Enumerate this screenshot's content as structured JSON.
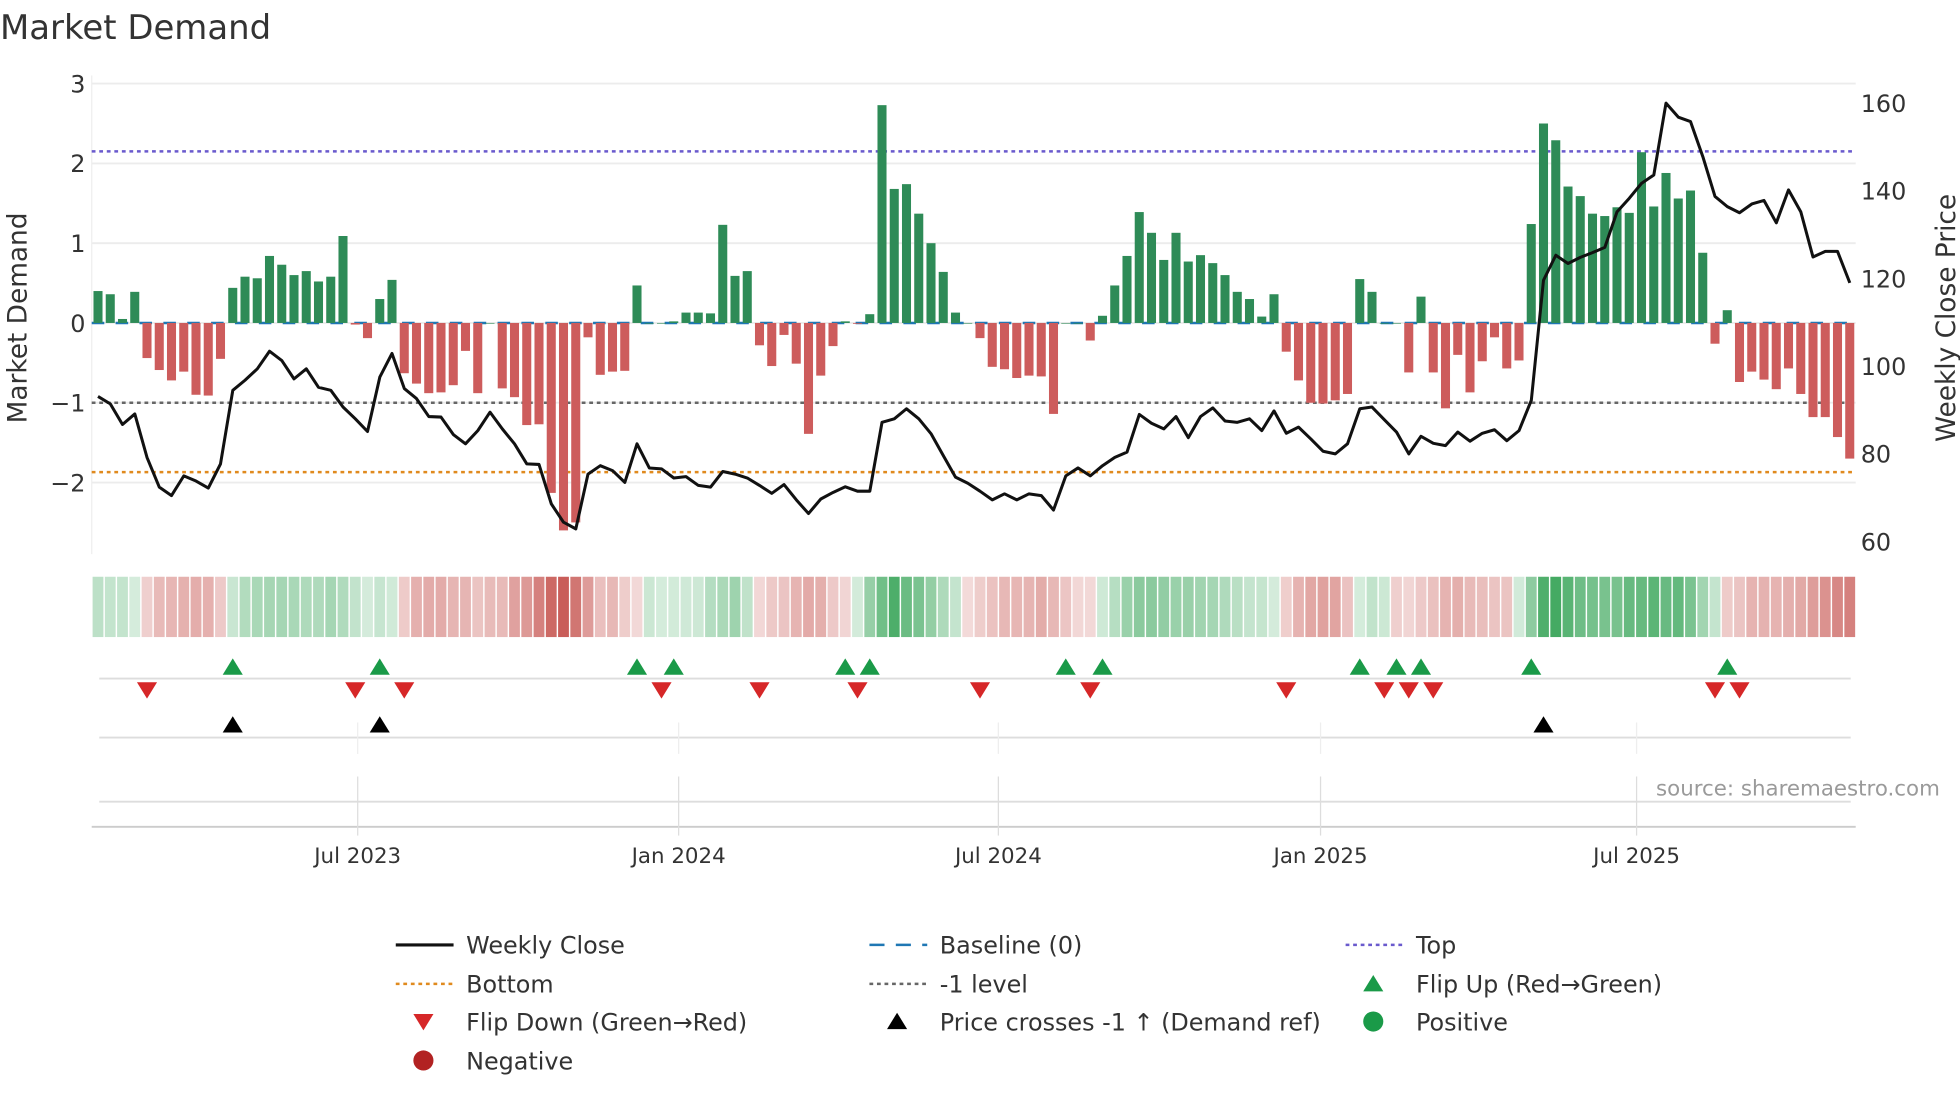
{
  "chart_data": {
    "type": "bar+line",
    "title": "Market Demand",
    "ylabel": "Market Demand",
    "y2label": "Weekly Close Price",
    "ylim": [
      -2.9,
      3
    ],
    "y2lim": [
      60,
      163
    ],
    "yticks": [
      3,
      2,
      1,
      0,
      -1,
      -2
    ],
    "ytick_labels": [
      "3",
      "2",
      "1",
      "0",
      "−1",
      "−2"
    ],
    "y2ticks": [
      160,
      140,
      120,
      100,
      80,
      60
    ],
    "y2tick_labels": [
      "160",
      "140",
      "120",
      "100",
      "80",
      "60"
    ],
    "xtick_labels": [
      "Jul 2023",
      "Jan 2024",
      "Jul 2024",
      "Jan 2025",
      "Jul 2025"
    ],
    "xtick_week_index": [
      21.2,
      47.4,
      73.5,
      99.8,
      125.6
    ],
    "frequency": "weekly",
    "demand": [
      0.4,
      0.36,
      0.05,
      0.39,
      -0.44,
      -0.59,
      -0.72,
      -0.61,
      -0.9,
      -0.91,
      -0.45,
      0.44,
      0.58,
      0.56,
      0.84,
      0.73,
      0.6,
      0.65,
      0.52,
      0.58,
      1.09,
      -0.02,
      -0.19,
      0.3,
      0.54,
      -0.63,
      -0.76,
      -0.88,
      -0.87,
      -0.78,
      -0.35,
      -0.88,
      0.0,
      -0.82,
      -0.93,
      -1.28,
      -1.27,
      -2.13,
      -2.6,
      -2.5,
      -0.18,
      -0.65,
      -0.61,
      -0.6,
      0.47,
      0.0,
      0.0,
      0.02,
      0.13,
      0.13,
      0.12,
      1.23,
      0.59,
      0.65,
      -0.28,
      -0.54,
      -0.15,
      -0.51,
      -1.39,
      -0.66,
      -0.29,
      0.02,
      -0.01,
      0.11,
      2.73,
      1.68,
      1.74,
      1.37,
      1.0,
      0.64,
      0.13,
      0.0,
      -0.19,
      -0.55,
      -0.58,
      -0.69,
      -0.66,
      -0.67,
      -1.14,
      0.0,
      0.0,
      -0.22,
      0.09,
      0.47,
      0.84,
      1.39,
      1.13,
      0.79,
      1.13,
      0.77,
      0.85,
      0.75,
      0.6,
      0.39,
      0.3,
      0.08,
      0.36,
      -0.36,
      -0.72,
      -1.0,
      -1.01,
      -0.97,
      -0.89,
      0.55,
      0.39,
      0.0,
      0.0,
      -0.62,
      0.33,
      -0.62,
      -1.07,
      -0.4,
      -0.87,
      -0.48,
      -0.18,
      -0.57,
      -0.47,
      1.24,
      2.5,
      2.29,
      1.71,
      1.59,
      1.37,
      1.34,
      1.45,
      1.38,
      2.14,
      1.46,
      1.88,
      1.56,
      1.66,
      0.88,
      -0.26,
      0.16,
      -0.74,
      -0.61,
      -0.71,
      -0.83,
      -0.57,
      -0.89,
      -1.18,
      -1.18,
      -1.43,
      -1.7
    ],
    "weekly_close": [
      93.1,
      91.4,
      86.7,
      89.1,
      79.2,
      72.4,
      70.5,
      75.0,
      73.8,
      72.2,
      77.7,
      94.5,
      96.8,
      99.4,
      103.4,
      101.3,
      97.1,
      99.4,
      95.2,
      94.5,
      90.7,
      88.0,
      85.1,
      97.5,
      102.9,
      94.9,
      92.6,
      88.5,
      88.4,
      84.4,
      82.3,
      85.3,
      89.5,
      85.7,
      82.3,
      77.7,
      77.6,
      68.6,
      64.4,
      62.9,
      75.4,
      77.3,
      76.2,
      73.5,
      82.3,
      76.8,
      76.6,
      74.5,
      74.8,
      72.8,
      72.4,
      76.0,
      75.4,
      74.5,
      72.8,
      71.0,
      73.0,
      69.5,
      66.4,
      69.7,
      71.2,
      72.5,
      71.5,
      71.5,
      87.2,
      88.0,
      90.3,
      88.0,
      84.6,
      79.6,
      74.7,
      73.3,
      71.5,
      69.5,
      70.9,
      69.5,
      70.9,
      70.5,
      67.2,
      75.0,
      76.8,
      75.0,
      77.3,
      79.2,
      80.4,
      89.0,
      87.0,
      85.7,
      88.5,
      83.7,
      88.5,
      90.5,
      87.5,
      87.2,
      88.0,
      85.3,
      89.8,
      84.7,
      86.1,
      83.4,
      80.6,
      80.0,
      82.3,
      90.3,
      90.7,
      87.8,
      85.0,
      80.0,
      84.0,
      82.4,
      81.9,
      85.0,
      82.9,
      84.7,
      85.5,
      83.0,
      85.3,
      92.2,
      119.6,
      125.3,
      123.4,
      124.8,
      125.9,
      127.1,
      135.2,
      138.3,
      141.7,
      143.6,
      160.0,
      156.8,
      155.8,
      147.8,
      138.7,
      136.4,
      135.0,
      137.0,
      137.8,
      132.7,
      140.2,
      135.2,
      124.9,
      126.2,
      126.2,
      119.0
    ],
    "reference_lines": {
      "top": 2.15,
      "bottom": -1.87,
      "minus_one": -1,
      "baseline": 0
    },
    "flip_up_weeks": [
      11,
      23,
      44,
      47,
      61,
      63,
      79,
      82,
      103,
      106,
      108,
      117,
      133
    ],
    "flip_down_weeks": [
      4,
      21,
      25,
      46,
      54,
      62,
      72,
      81,
      97,
      105,
      107,
      109,
      132,
      134
    ],
    "price_cross_weeks": [
      11,
      23,
      118
    ],
    "legend": [
      "Weekly Close",
      "Baseline (0)",
      "Top",
      "Bottom",
      "-1 level",
      "Flip Up (Red→Green)",
      "Flip Down (Green→Red)",
      "Price crosses -1 ↑ (Demand ref)",
      "Positive",
      "Negative"
    ],
    "legend_placement": "bottom",
    "annotation": "source: sharemaestro.com"
  },
  "colors": {
    "positive_bar": "#2e8b57",
    "negative_bar": "#cd5c5c",
    "line": "#111111",
    "baseline": "#1f77b4",
    "top": "#6a5acd",
    "bottom": "#e08a1e",
    "minus_one": "#666666",
    "flip_up": "#1a9a48",
    "flip_down": "#d62728",
    "cross": "#000000",
    "positive_dot": "#1a9a48",
    "negative_dot": "#b22222"
  }
}
